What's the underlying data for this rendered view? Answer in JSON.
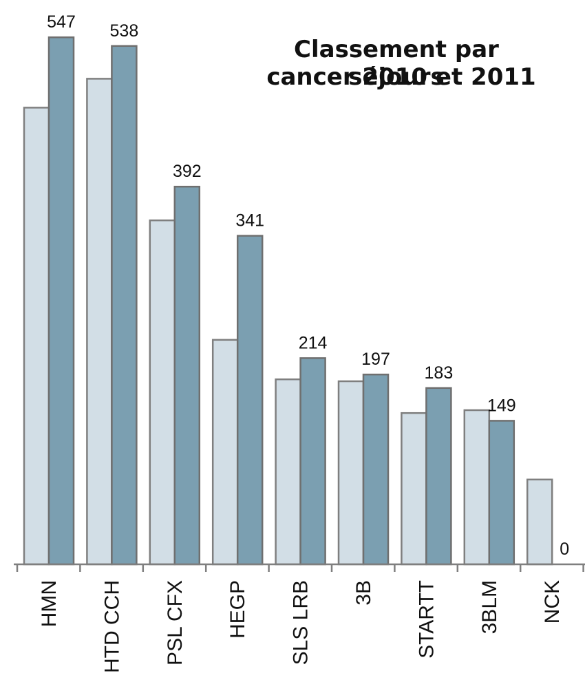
{
  "chart_data": {
    "type": "bar",
    "title": [
      "Classement par séjours",
      "cancer 2010 et 2011"
    ],
    "categories": [
      "HMN",
      "HTD CCH",
      "PSL CFX",
      "HEGP",
      "SLS LRB",
      "3B",
      "STARTT",
      "3BLM",
      "NCK"
    ],
    "series": [
      {
        "values": [
          474,
          504,
          357,
          233,
          192,
          190,
          157,
          160,
          88
        ],
        "color": "#d2dee6"
      },
      {
        "values": [
          547,
          538,
          392,
          341,
          214,
          197,
          183,
          149,
          0
        ],
        "color": "#7b9fb1"
      }
    ],
    "data_labels": [
      "547",
      "538",
      "392",
      "341",
      "214",
      "197",
      "183",
      "149",
      "0"
    ],
    "ylim": [
      0,
      600
    ],
    "grid": false,
    "legend": "none"
  }
}
